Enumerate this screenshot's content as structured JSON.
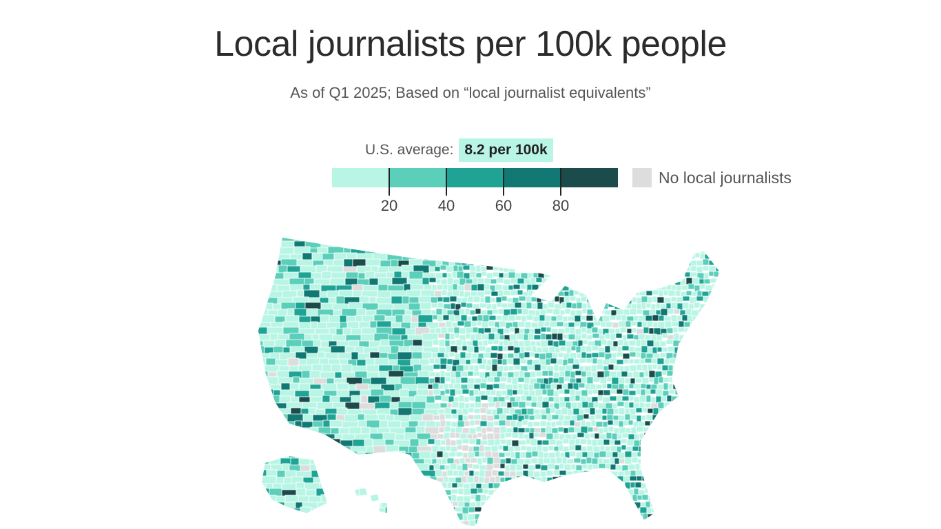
{
  "title": "Local journalists per 100k people",
  "subtitle": "As of Q1 2025; Based on “local journalist equivalents”",
  "legend": {
    "average_label": "U.S. average:",
    "average_value": "8.2 per 100k",
    "bins": [
      {
        "range": "0–20",
        "color": "#b9f5e4"
      },
      {
        "range": "20–40",
        "color": "#5ccfbb"
      },
      {
        "range": "40–60",
        "color": "#1ea395"
      },
      {
        "range": "60–80",
        "color": "#127873"
      },
      {
        "range": "80+",
        "color": "#1b4b4b"
      }
    ],
    "ticks": [
      "20",
      "40",
      "60",
      "80"
    ],
    "no_data_label": "No local journalists",
    "no_data_color": "#dddddd"
  }
}
